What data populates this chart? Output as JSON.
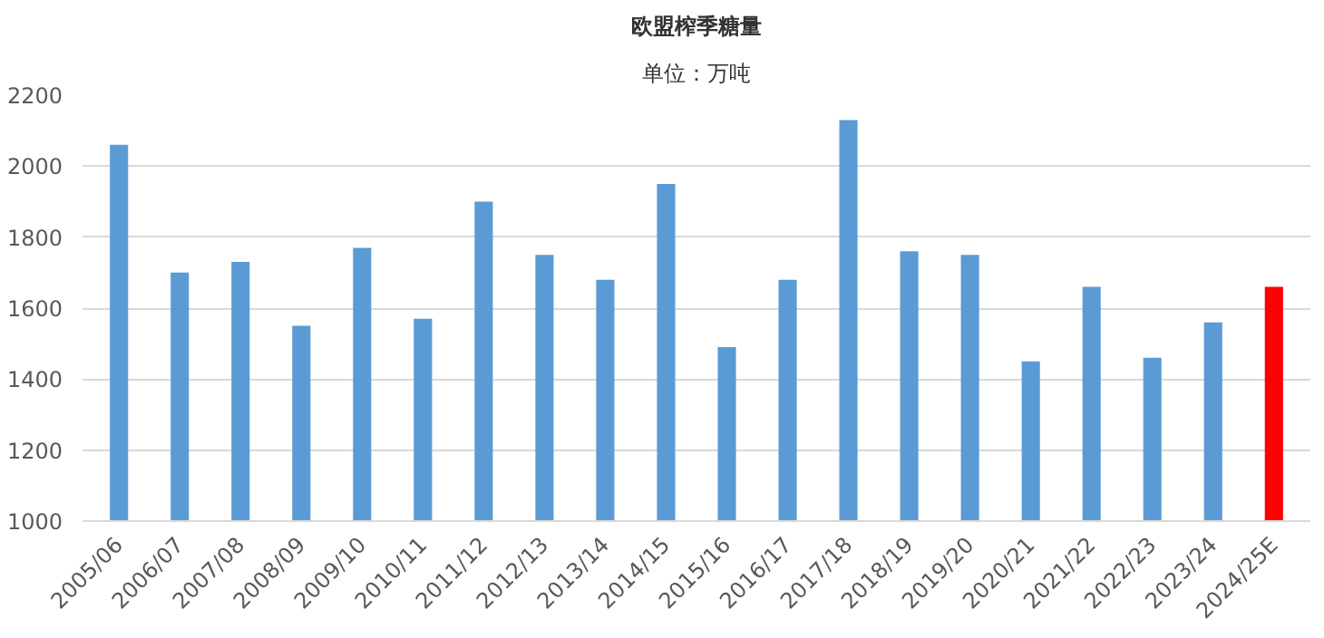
{
  "chart_data": {
    "type": "bar",
    "title": "欧盟榨季糖量",
    "subtitle": "单位：万吨",
    "categories": [
      "2005/06",
      "2006/07",
      "2007/08",
      "2008/09",
      "2009/10",
      "2010/11",
      "2011/12",
      "2012/13",
      "2013/14",
      "2014/15",
      "2015/16",
      "2016/17",
      "2017/18",
      "2018/19",
      "2019/20",
      "2020/21",
      "2021/22",
      "2022/23",
      "2023/24",
      "2024/25E"
    ],
    "values": [
      2060,
      1700,
      1730,
      1550,
      1770,
      1570,
      1900,
      1750,
      1680,
      1950,
      1490,
      1680,
      2130,
      1760,
      1750,
      1450,
      1660,
      1460,
      1560,
      1660
    ],
    "colors": [
      "#5b9bd5",
      "#5b9bd5",
      "#5b9bd5",
      "#5b9bd5",
      "#5b9bd5",
      "#5b9bd5",
      "#5b9bd5",
      "#5b9bd5",
      "#5b9bd5",
      "#5b9bd5",
      "#5b9bd5",
      "#5b9bd5",
      "#5b9bd5",
      "#5b9bd5",
      "#5b9bd5",
      "#5b9bd5",
      "#5b9bd5",
      "#5b9bd5",
      "#5b9bd5",
      "#ff0000"
    ],
    "ylim": [
      1000,
      2200
    ],
    "yticks": [
      1000,
      1200,
      1400,
      1600,
      1800,
      2000,
      2200
    ],
    "grid": "y"
  }
}
